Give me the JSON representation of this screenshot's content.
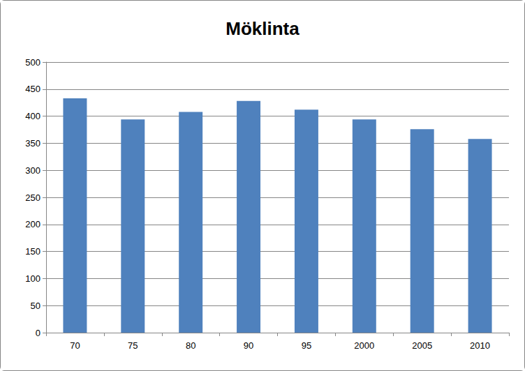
{
  "chart_data": {
    "type": "bar",
    "title": "Möklinta",
    "categories": [
      "70",
      "75",
      "80",
      "90",
      "95",
      "2000",
      "2005",
      "2010"
    ],
    "values": [
      433,
      394,
      408,
      428,
      412,
      394,
      376,
      358
    ],
    "color": "#4f81bd",
    "ylim": [
      0,
      500
    ],
    "yticks": [
      0,
      50,
      100,
      150,
      200,
      250,
      300,
      350,
      400,
      450,
      500
    ],
    "grid": true
  }
}
